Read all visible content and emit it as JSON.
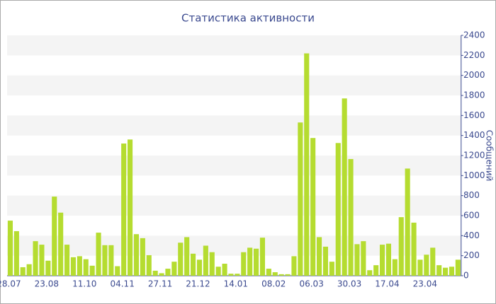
{
  "chart_data": {
    "type": "bar",
    "title": "Статистика активности",
    "y_axis_label": "Сообщений",
    "categories": [
      "28.07",
      null,
      null,
      null,
      null,
      null,
      "23.08",
      null,
      null,
      null,
      null,
      null,
      "11.10",
      null,
      null,
      null,
      null,
      null,
      "04.11",
      null,
      null,
      null,
      null,
      null,
      "27.11",
      null,
      null,
      null,
      null,
      null,
      "21.12",
      null,
      null,
      null,
      null,
      null,
      "14.01",
      null,
      null,
      null,
      null,
      null,
      "08.02",
      null,
      null,
      null,
      null,
      null,
      "06.03",
      null,
      null,
      null,
      null,
      null,
      "30.03",
      null,
      null,
      null,
      null,
      null,
      "17.04",
      null,
      null,
      null,
      null,
      null,
      "23.04",
      null,
      null,
      null,
      null,
      null
    ],
    "values": [
      550,
      445,
      85,
      115,
      345,
      310,
      150,
      790,
      630,
      310,
      185,
      195,
      165,
      100,
      430,
      305,
      305,
      95,
      1320,
      1360,
      415,
      375,
      205,
      50,
      25,
      70,
      140,
      330,
      385,
      220,
      160,
      300,
      235,
      90,
      120,
      20,
      20,
      235,
      280,
      270,
      380,
      70,
      35,
      15,
      15,
      195,
      1530,
      2220,
      1375,
      385,
      290,
      140,
      1325,
      1770,
      1165,
      315,
      345,
      55,
      105,
      310,
      320,
      165,
      585,
      1070,
      530,
      160,
      210,
      280,
      105,
      80,
      90,
      160
    ],
    "color": "#b5dc30",
    "ylim": [
      0,
      2400
    ],
    "yticks": [
      0,
      200,
      400,
      600,
      800,
      1000,
      1200,
      1400,
      1600,
      1800,
      2000,
      2200,
      2400
    ],
    "grid": true
  }
}
